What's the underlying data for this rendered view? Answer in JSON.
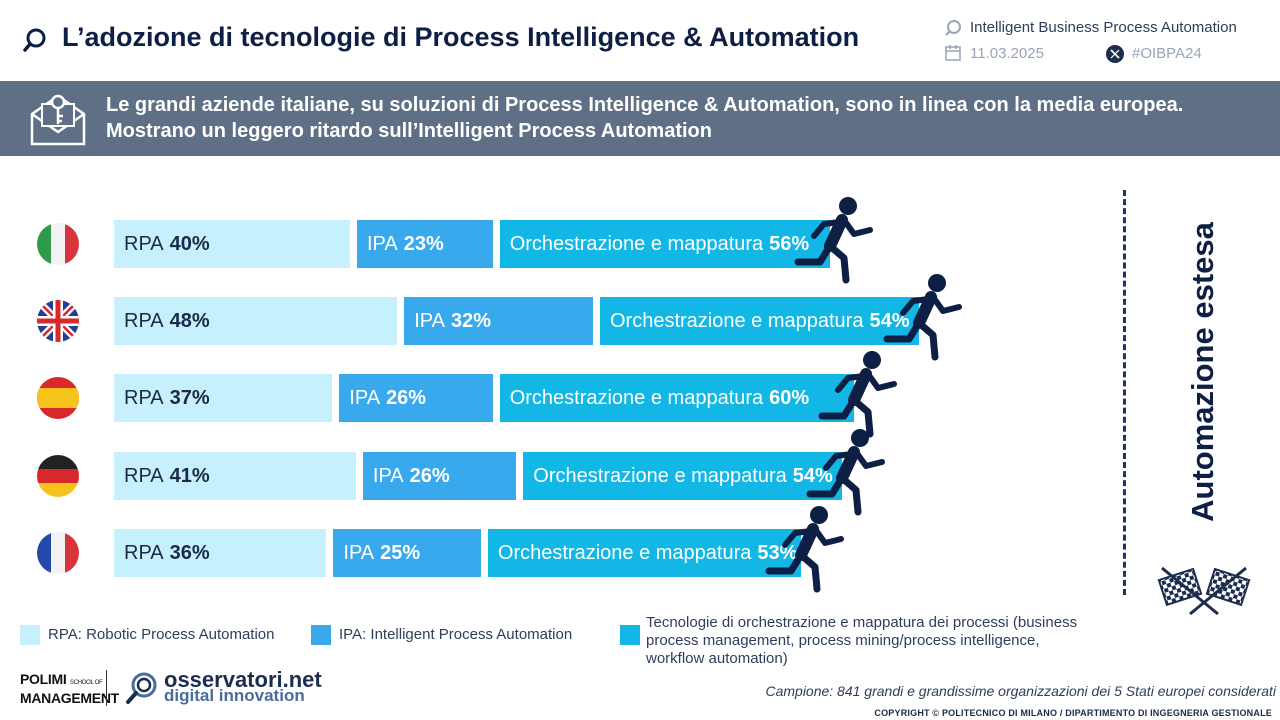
{
  "header": {
    "title": "L’adozione di tecnologie di Process Intelligence & Automation",
    "event_name": "Intelligent Business Process Automation",
    "date": "11.03.2025",
    "hashtag": "#OIBPA24"
  },
  "banner": {
    "text": "Le grandi aziende italiane, su soluzioni di Process Intelligence & Automation, sono in linea con la media europea. Mostrano un leggero ritardo sull’Intelligent Process Automation"
  },
  "side_label": "Automazione estesa",
  "chart_data": {
    "type": "bar",
    "orientation": "horizontal-stacked",
    "categories": [
      "Italia",
      "Regno Unito",
      "Spagna",
      "Germania",
      "Francia"
    ],
    "series": [
      {
        "name": "RPA",
        "values": [
          40,
          48,
          37,
          41,
          36
        ],
        "color": "#c6f0fb"
      },
      {
        "name": "IPA",
        "values": [
          23,
          32,
          26,
          26,
          25
        ],
        "color": "#39a9ee"
      },
      {
        "name": "Orchestrazione e mappatura",
        "values": [
          56,
          54,
          60,
          54,
          53
        ],
        "color": "#12b7e6"
      }
    ],
    "unit": "%"
  },
  "legend": [
    {
      "label": "RPA: Robotic Process Automation",
      "color": "#c6f0fb"
    },
    {
      "label": "IPA: Intelligent Process Automation",
      "color": "#39a9ee"
    },
    {
      "label": "Tecnologie di orchestrazione e mappatura dei processi (business process management, process mining/process intelligence, workflow automation)",
      "color": "#12b7e6"
    }
  ],
  "footer": {
    "sample": "Campione: 841 grandi e grandissime organizzazioni dei 5 Stati europei considerati",
    "copyright": "COPYRIGHT © POLITECNICO DI MILANO / DIPARTIMENTO DI INGEGNERIA GESTIONALE",
    "polimi_line1": "POLIMI",
    "polimi_small": "SCHOOL OF",
    "polimi_line2": "MANAGEMENT",
    "osservatori_name": "osservatori.net",
    "osservatori_sub": "digital innovation"
  }
}
